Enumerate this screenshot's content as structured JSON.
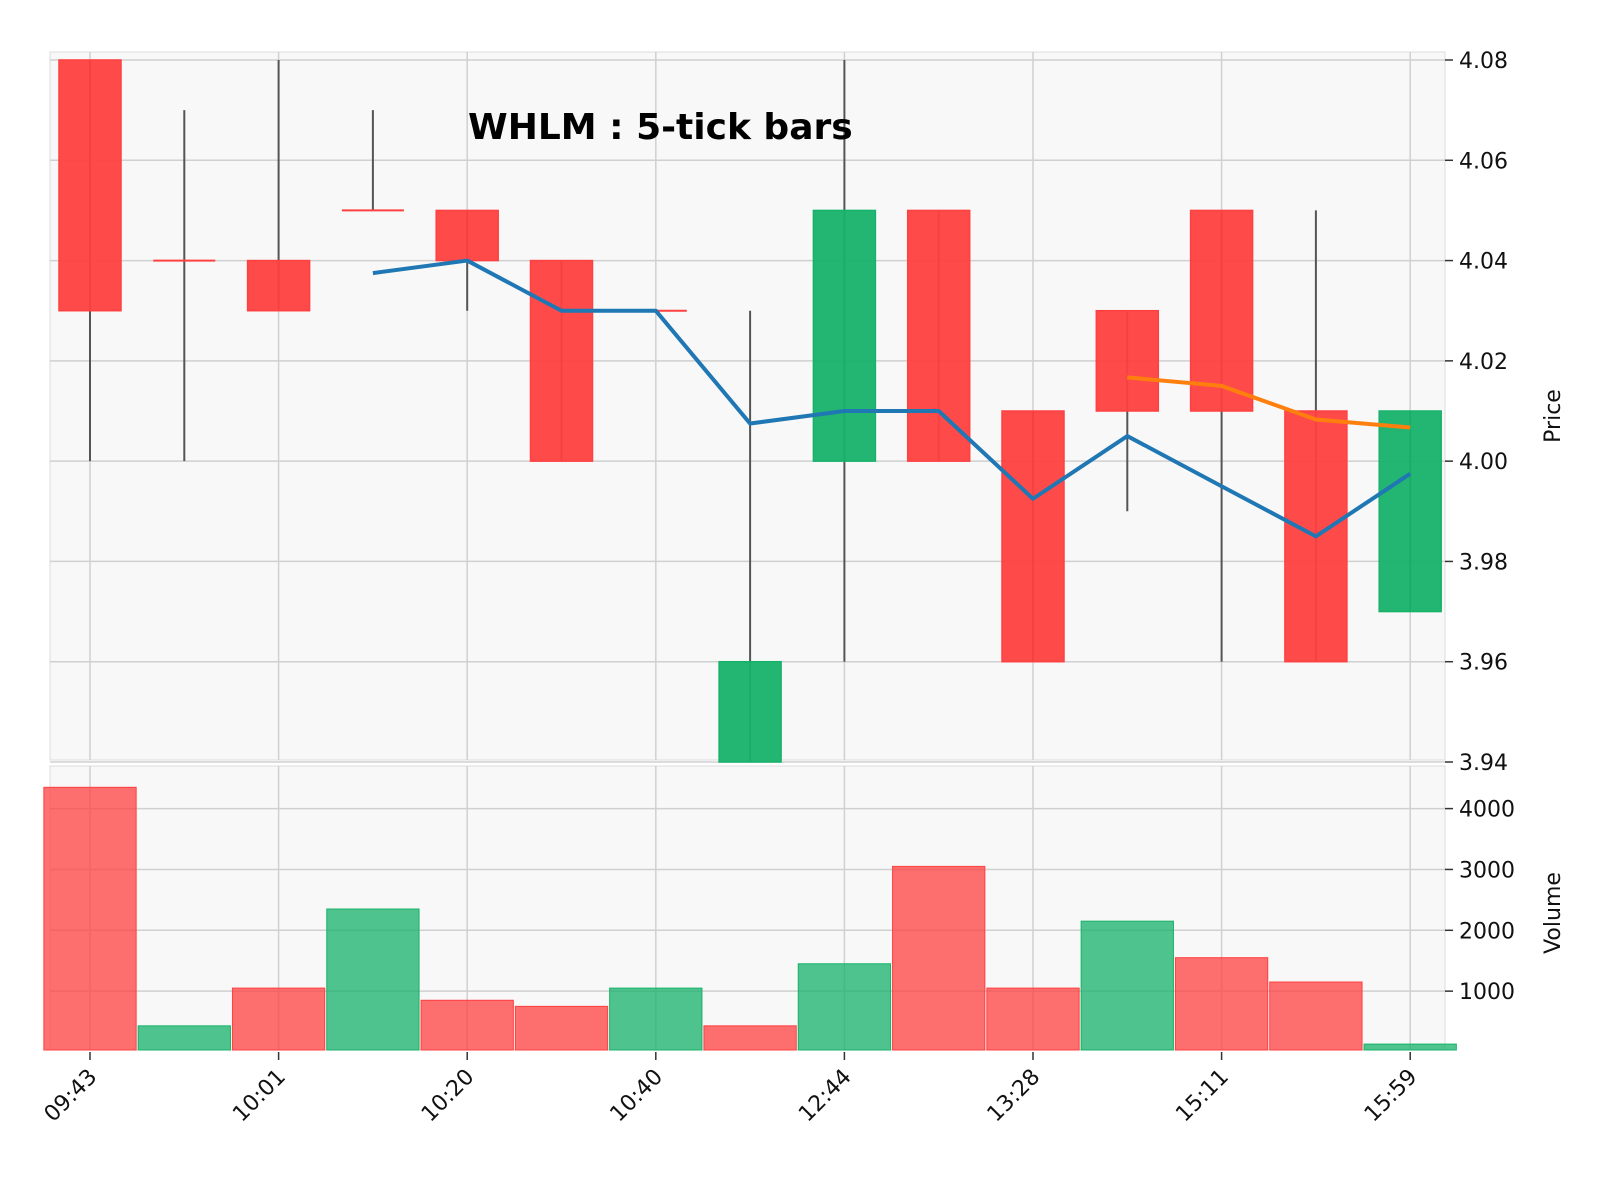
{
  "chart_data": {
    "type": "candlestick",
    "title": "WHLM : 5-tick bars",
    "ylabel_price": "Price",
    "ylabel_volume": "Volume",
    "price_ylim": [
      3.94,
      4.08
    ],
    "price_ticks": [
      "3.94",
      "3.96",
      "3.98",
      "4.00",
      "4.02",
      "4.04",
      "4.06",
      "4.08"
    ],
    "volume_ticks": [
      "1000",
      "2000",
      "3000",
      "4000"
    ],
    "volume_ylim": [
      0,
      4700
    ],
    "x_tick_labels": [
      "09:43",
      "10:01",
      "10:20",
      "10:40",
      "12:44",
      "13:28",
      "15:11",
      "15:59"
    ],
    "grid": true,
    "colors": {
      "up": "#17b26a",
      "down": "#ff4040",
      "wick": "#555555",
      "mav1": "#1f77b4",
      "mav2": "#ff7f0e",
      "panel_bg": "#f8f8f8",
      "grid": "#d0d0d0"
    },
    "candles": [
      {
        "open": 4.08,
        "high": 4.08,
        "low": 4.0,
        "close": 4.03,
        "volume": 4350
      },
      {
        "open": 4.04,
        "high": 4.07,
        "low": 4.0,
        "close": 4.04,
        "volume": 430
      },
      {
        "open": 4.04,
        "high": 4.08,
        "low": 4.03,
        "close": 4.03,
        "volume": 1050
      },
      {
        "open": 4.05,
        "high": 4.07,
        "low": 4.05,
        "close": 4.05,
        "volume": 2350
      },
      {
        "open": 4.05,
        "high": 4.05,
        "low": 4.03,
        "close": 4.04,
        "volume": 850
      },
      {
        "open": 4.04,
        "high": 4.04,
        "low": 4.0,
        "close": 4.0,
        "volume": 750
      },
      {
        "open": 4.03,
        "high": 4.03,
        "low": 4.03,
        "close": 4.03,
        "volume": 1050
      },
      {
        "open": 3.94,
        "high": 4.03,
        "low": 3.94,
        "close": 3.96,
        "volume": 430
      },
      {
        "open": 4.0,
        "high": 4.08,
        "low": 3.96,
        "close": 4.05,
        "volume": 1450
      },
      {
        "open": 4.05,
        "high": 4.05,
        "low": 4.0,
        "close": 4.0,
        "volume": 3050
      },
      {
        "open": 4.01,
        "high": 4.01,
        "low": 3.96,
        "close": 3.96,
        "volume": 1050
      },
      {
        "open": 4.03,
        "high": 4.03,
        "low": 3.99,
        "close": 4.01,
        "volume": 2150
      },
      {
        "open": 4.05,
        "high": 4.05,
        "low": 3.96,
        "close": 4.01,
        "volume": 1550
      },
      {
        "open": 4.01,
        "high": 4.05,
        "low": 3.96,
        "close": 3.96,
        "volume": 1150
      },
      {
        "open": 3.97,
        "high": 4.01,
        "low": 3.97,
        "close": 4.01,
        "volume": 130
      }
    ],
    "volume_direction": [
      "down",
      "up",
      "down",
      "up",
      "down",
      "down",
      "up",
      "down",
      "up",
      "down",
      "down",
      "up",
      "down",
      "down",
      "up"
    ],
    "moving_averages": [
      {
        "values": [
          null,
          null,
          null,
          4.0375,
          4.04,
          4.03,
          4.03,
          4.0075,
          4.01,
          4.01,
          3.9925,
          4.005,
          3.995,
          3.985,
          3.9975
        ]
      },
      {
        "values": [
          null,
          null,
          null,
          null,
          null,
          null,
          null,
          null,
          null,
          null,
          null,
          4.0167,
          4.015,
          4.0083,
          4.0067
        ]
      }
    ]
  }
}
